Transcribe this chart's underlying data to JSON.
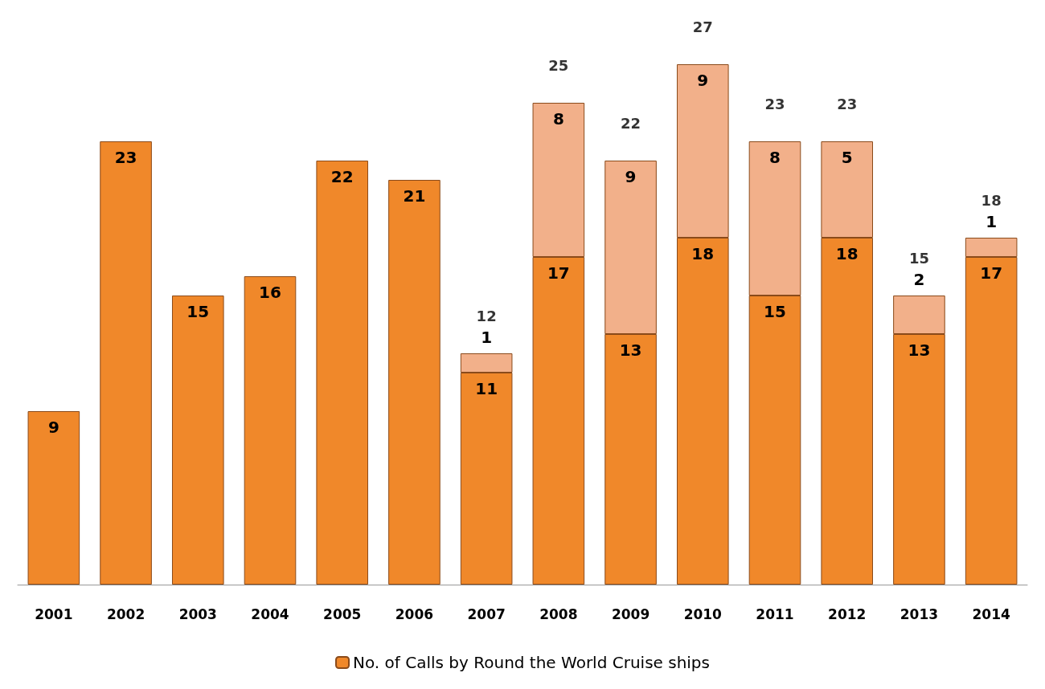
{
  "chart_data": {
    "type": "bar",
    "stacked": true,
    "data_labels": true,
    "legend": "bottom",
    "categories": [
      "2001",
      "2002",
      "2003",
      "2004",
      "2005",
      "2006",
      "2007",
      "2008",
      "2009",
      "2010",
      "2011",
      "2012",
      "2013",
      "2014"
    ],
    "series": [
      {
        "name": "No. of Calls by Round the World Cruise ships",
        "color": "#f0882a",
        "values": [
          9,
          23,
          15,
          16,
          22,
          21,
          11,
          17,
          13,
          18,
          15,
          18,
          13,
          17
        ]
      },
      {
        "color": "#f2b08a",
        "values": [
          null,
          null,
          null,
          null,
          null,
          null,
          1,
          8,
          9,
          9,
          8,
          5,
          2,
          1
        ]
      }
    ],
    "totals": [
      null,
      null,
      null,
      null,
      null,
      null,
      "12",
      "25",
      "22",
      "27",
      "23",
      "23",
      "15",
      "18"
    ]
  }
}
